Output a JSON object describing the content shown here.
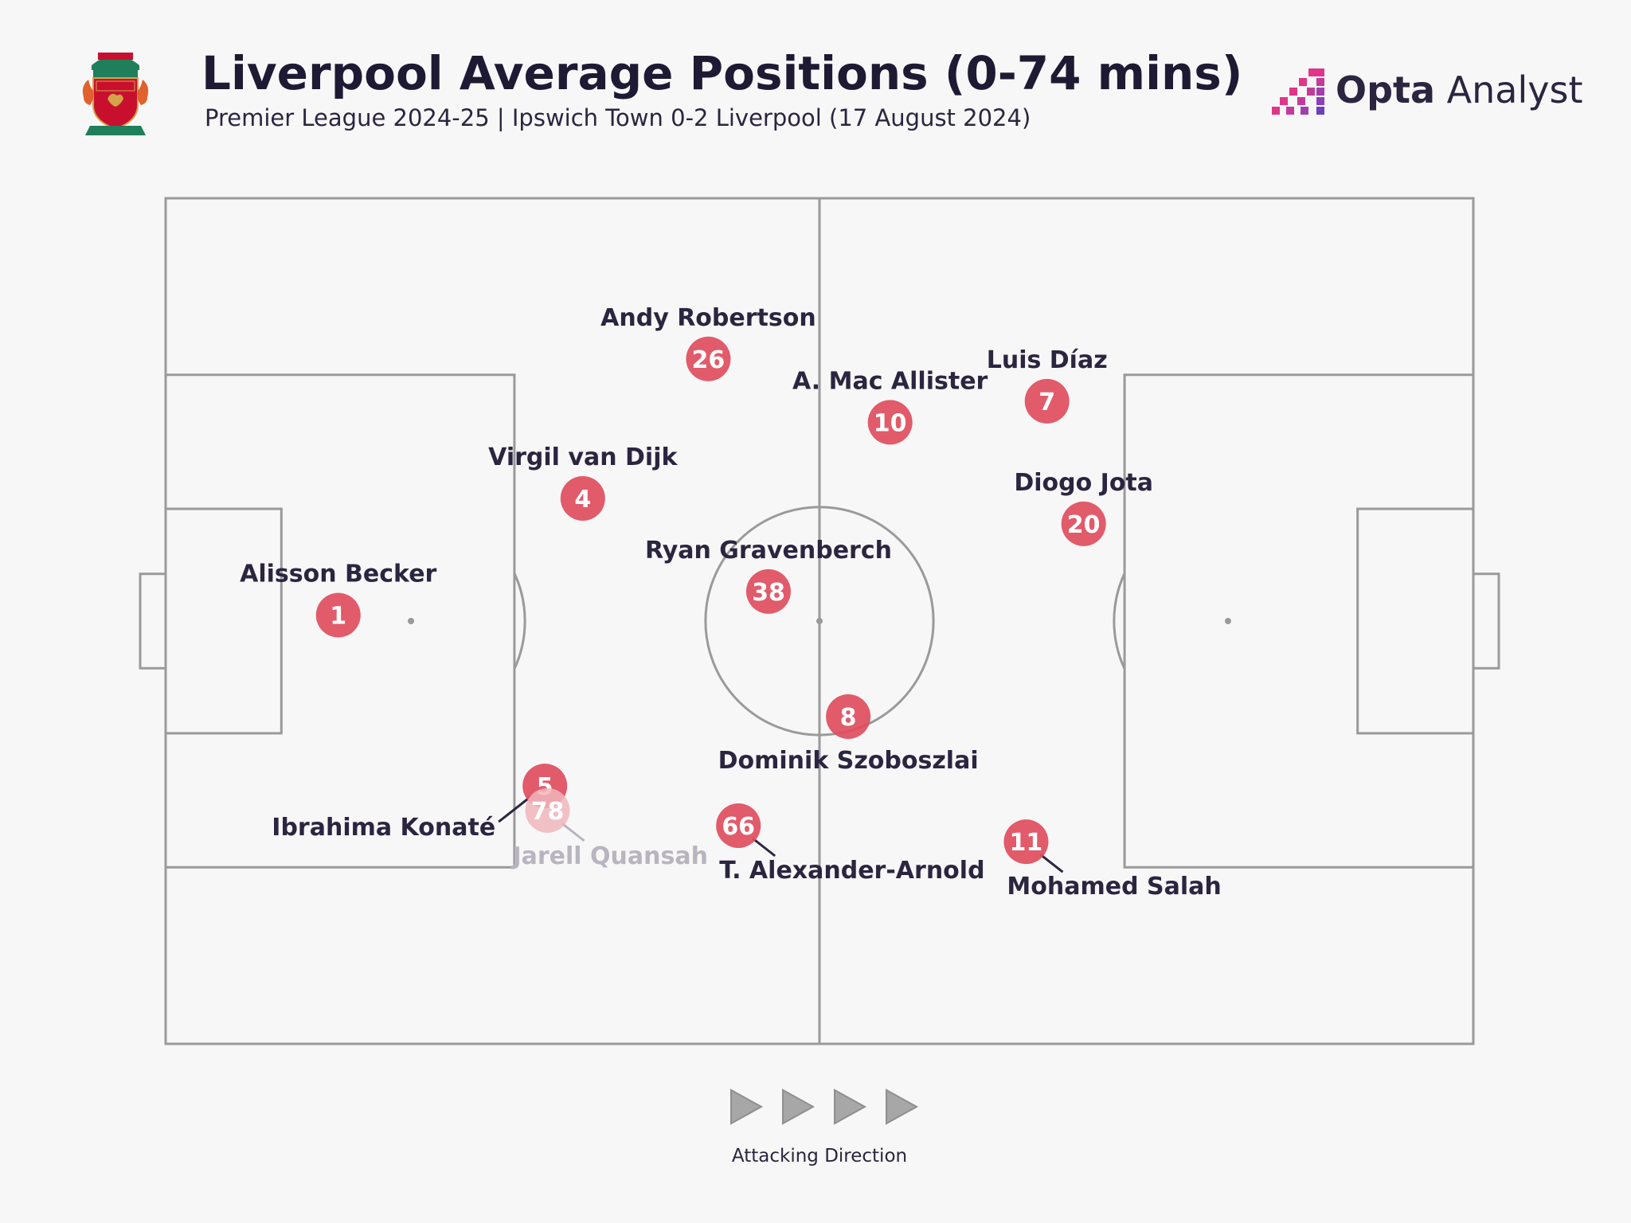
{
  "header": {
    "title": "Liverpool Average Positions (0-74 mins)",
    "subtitle": "Premier League 2024-25 | Ipswich Town 0-2 Liverpool (17 August 2024)",
    "crest_icon": "liverpool-crest-icon",
    "brand": {
      "bold": "Opta",
      "regular": " Analyst",
      "icon": "opta-pixel-logo-icon"
    }
  },
  "pitch": {
    "line_color": "#9a9a9a",
    "pitch_length_m": 105,
    "pitch_width_m": 68
  },
  "players": [
    {
      "number": "1",
      "name": "Alisson Becker",
      "x": 13.2,
      "y": 49.3,
      "label": "above"
    },
    {
      "number": "4",
      "name": "Virgil van Dijk",
      "x": 31.9,
      "y": 35.5,
      "label": "above"
    },
    {
      "number": "26",
      "name": "Andy Robertson",
      "x": 41.5,
      "y": 19.0,
      "label": "above"
    },
    {
      "number": "5",
      "name": "Ibrahima Konaté",
      "x": 29.0,
      "y": 69.5,
      "label": "left-below"
    },
    {
      "number": "78",
      "name": "Jarell Quansah",
      "x": 29.2,
      "y": 72.4,
      "label": "right-below",
      "faded": true
    },
    {
      "number": "38",
      "name": "Ryan Gravenberch",
      "x": 46.1,
      "y": 46.5,
      "label": "above"
    },
    {
      "number": "10",
      "name": "A. Mac Allister",
      "x": 55.4,
      "y": 26.5,
      "label": "above"
    },
    {
      "number": "8",
      "name": "Dominik Szoboszlai",
      "x": 52.2,
      "y": 61.3,
      "label": "below"
    },
    {
      "number": "66",
      "name": "T. Alexander-Arnold",
      "x": 43.8,
      "y": 74.2,
      "label": "right-below"
    },
    {
      "number": "7",
      "name": "Luis Díaz",
      "x": 67.4,
      "y": 24.0,
      "label": "above"
    },
    {
      "number": "20",
      "name": "Diogo Jota",
      "x": 70.2,
      "y": 38.5,
      "label": "above"
    },
    {
      "number": "11",
      "name": "Mohamed Salah",
      "x": 65.8,
      "y": 76.1,
      "label": "right-below"
    }
  ],
  "marker_color": "#de4d5e",
  "marker_faded_color": "#f0b6bc",
  "faded_label_color": "#b8b4c0",
  "direction": {
    "label": "Attacking Direction",
    "arrow_icon": "play-arrow-icon",
    "arrow_count": 4
  }
}
